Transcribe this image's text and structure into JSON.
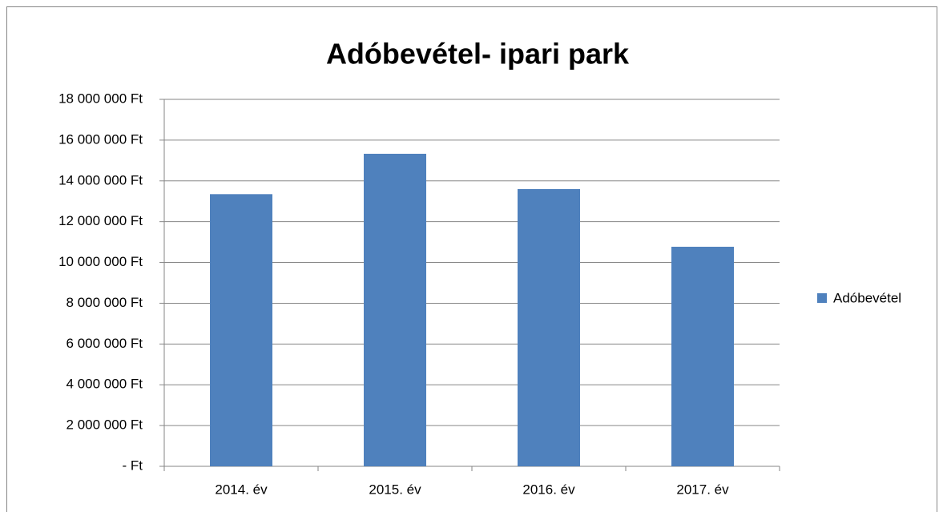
{
  "chart_data": {
    "type": "bar",
    "title": "Adóbevétel- ipari park",
    "categories": [
      "2014. év",
      "2015. év",
      "2016. év",
      "2017. év"
    ],
    "series": [
      {
        "name": "Adóbevétel",
        "color": "#4f81bd",
        "values": [
          13350000,
          15330000,
          13600000,
          10770000
        ]
      }
    ],
    "ylim": [
      0,
      18000000
    ],
    "yticks": [
      {
        "value": 0,
        "label": "- Ft"
      },
      {
        "value": 2000000,
        "label": "2 000 000 Ft"
      },
      {
        "value": 4000000,
        "label": "4 000 000 Ft"
      },
      {
        "value": 6000000,
        "label": "6 000 000 Ft"
      },
      {
        "value": 8000000,
        "label": "8 000 000 Ft"
      },
      {
        "value": 10000000,
        "label": "10 000 000 Ft"
      },
      {
        "value": 12000000,
        "label": "12 000 000 Ft"
      },
      {
        "value": 14000000,
        "label": "14 000 000 Ft"
      },
      {
        "value": 16000000,
        "label": "16 000 000 Ft"
      },
      {
        "value": 18000000,
        "label": "18 000 000 Ft"
      }
    ],
    "grid": true,
    "legend": "right"
  }
}
